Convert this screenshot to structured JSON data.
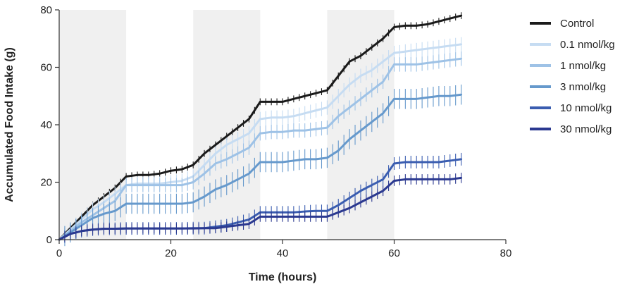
{
  "chart_data": {
    "type": "line",
    "xlabel": "Time (hours)",
    "ylabel": "Accumulated Food Intake (g)",
    "xlim": [
      0,
      80
    ],
    "ylim": [
      0,
      80
    ],
    "xticks": [
      0,
      20,
      40,
      60,
      80
    ],
    "yticks": [
      0,
      20,
      40,
      60,
      80
    ],
    "grid": false,
    "legend_position": "right",
    "shaded_intervals": [
      [
        0,
        12
      ],
      [
        24,
        36
      ],
      [
        48,
        60
      ]
    ],
    "shade_color": "#f0f0f0",
    "x": [
      0,
      2,
      4,
      6,
      8,
      10,
      12,
      14,
      16,
      18,
      20,
      22,
      24,
      26,
      28,
      30,
      32,
      34,
      36,
      38,
      40,
      42,
      44,
      46,
      48,
      50,
      52,
      54,
      56,
      58,
      60,
      62,
      64,
      66,
      68,
      70,
      72
    ],
    "series": [
      {
        "name": "Control",
        "color": "#1a1a1a",
        "values": [
          0,
          4,
          8,
          12,
          15,
          18,
          22,
          22.5,
          22.5,
          23,
          24,
          24.5,
          26,
          30,
          33,
          36,
          39,
          42,
          48,
          48,
          48,
          49,
          50,
          51,
          52,
          57,
          62,
          64,
          67,
          70,
          74,
          74.5,
          74.5,
          75,
          76,
          77,
          78
        ],
        "error": 1.2
      },
      {
        "name": "0.1 nmol/kg",
        "color": "#c6dcf2",
        "values": [
          0,
          3.5,
          7,
          10.5,
          13,
          16,
          19,
          19.5,
          19.5,
          19.5,
          20,
          20.5,
          22,
          26,
          30,
          33,
          35,
          37,
          42,
          42.5,
          42.5,
          43,
          44,
          45,
          46,
          50,
          54,
          57,
          59,
          62,
          65,
          65.5,
          66,
          66.5,
          67,
          67.5,
          68
        ],
        "error": 2.5
      },
      {
        "name": "1 nmol/kg",
        "color": "#9ec2e6",
        "values": [
          0,
          3,
          6,
          8.5,
          11,
          13.5,
          19,
          19,
          19,
          19,
          19,
          19,
          20,
          23,
          26.5,
          28,
          30,
          32,
          37,
          37.5,
          37.5,
          38,
          38,
          38.5,
          39,
          43,
          46,
          49,
          52,
          55,
          61,
          61,
          61,
          61.5,
          62,
          62.5,
          63
        ],
        "error": 2.5
      },
      {
        "name": "3 nmol/kg",
        "color": "#6699cc",
        "values": [
          0,
          2.5,
          5,
          7.5,
          9,
          10,
          12.5,
          12.5,
          12.5,
          12.5,
          12.5,
          12.5,
          13,
          15,
          17.5,
          19,
          21,
          23,
          27,
          27,
          27,
          27.5,
          28,
          28,
          28.5,
          31,
          35,
          38,
          41,
          44,
          49,
          49,
          49,
          49.5,
          50,
          50,
          50.5
        ],
        "error": 3.5
      },
      {
        "name": "10 nmol/kg",
        "color": "#3a5db0",
        "values": [
          0,
          2,
          3,
          3.5,
          3.8,
          3.8,
          3.9,
          3.9,
          3.9,
          3.9,
          3.9,
          3.9,
          4,
          4,
          4.5,
          5,
          6,
          7,
          9.5,
          9.5,
          9.5,
          9.5,
          9.8,
          10,
          10,
          12,
          14.5,
          17,
          19,
          21,
          26.5,
          27,
          27,
          27,
          27,
          27.5,
          28
        ],
        "error": 2.2
      },
      {
        "name": "30 nmol/kg",
        "color": "#2b3990",
        "values": [
          0,
          2,
          3,
          3.5,
          3.8,
          3.8,
          3.9,
          3.9,
          3.9,
          3.9,
          3.9,
          3.9,
          3.9,
          4,
          4,
          4.5,
          5,
          5.5,
          8,
          8,
          8,
          8,
          8,
          8,
          8,
          9.5,
          11,
          13,
          15,
          17,
          20.5,
          21,
          21,
          21,
          21,
          21,
          21.5
        ],
        "error": 1.8
      }
    ]
  }
}
